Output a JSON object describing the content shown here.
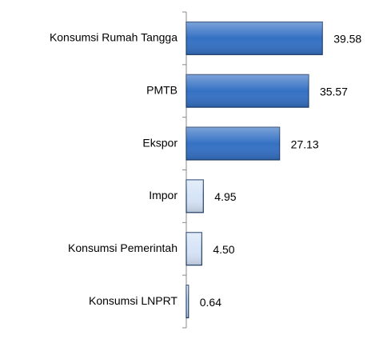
{
  "chart_data": {
    "type": "hbar",
    "categories": [
      "Konsumsi Rumah Tangga",
      "PMTB",
      "Ekspor",
      "Impor",
      "Konsumsi Pemerintah",
      "Konsumsi LNPRT"
    ],
    "values": [
      39.58,
      35.57,
      27.13,
      4.95,
      4.5,
      0.64
    ],
    "value_labels": [
      "39.58",
      "35.57",
      "27.13",
      "4.95",
      "4.50",
      "0.64"
    ],
    "colors": [
      "#3571c4",
      "#3571c4",
      "#3571c4",
      "#d6e4f7",
      "#d6e4f7",
      "#d6e4f7"
    ],
    "xlim": [
      0,
      50
    ]
  }
}
